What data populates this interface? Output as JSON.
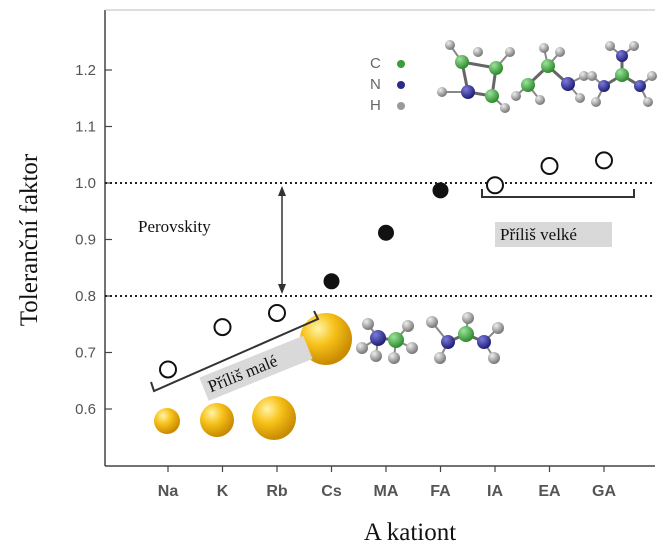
{
  "chart_data": {
    "type": "scatter",
    "ylabel": "Toleranční faktor",
    "xlabel": "A kationt",
    "categories": [
      "Na",
      "K",
      "Rb",
      "Cs",
      "MA",
      "FA",
      "IA",
      "EA",
      "GA"
    ],
    "ylim": [
      0.5,
      1.3
    ],
    "yticks": [
      0.6,
      0.7,
      0.8,
      0.9,
      1.0,
      1.1,
      1.2
    ],
    "ytick_labels": [
      "0.6",
      "0.7",
      "0.8",
      "0.9",
      "1.0",
      "1.1",
      "1.2"
    ],
    "reference_lines": [
      0.8,
      1.0
    ],
    "points": [
      {
        "category": "Na",
        "value": 0.67,
        "filled": false
      },
      {
        "category": "K",
        "value": 0.745,
        "filled": false
      },
      {
        "category": "Rb",
        "value": 0.77,
        "filled": false
      },
      {
        "category": "Cs",
        "value": 0.826,
        "filled": true
      },
      {
        "category": "MA",
        "value": 0.912,
        "filled": true
      },
      {
        "category": "FA",
        "value": 0.987,
        "filled": true
      },
      {
        "category": "IA",
        "value": 0.996,
        "filled": false
      },
      {
        "category": "EA",
        "value": 1.03,
        "filled": false
      },
      {
        "category": "GA",
        "value": 1.04,
        "filled": false
      }
    ],
    "annotations": {
      "perovskite_region": "Perovskity",
      "too_small": "Příliš malé",
      "too_large": "Příliš velké"
    },
    "legend": [
      {
        "label": "C",
        "color": "#3a9d3a"
      },
      {
        "label": "N",
        "color": "#2b2b8c"
      },
      {
        "label": "H",
        "color": "#9a9a9a"
      }
    ]
  }
}
